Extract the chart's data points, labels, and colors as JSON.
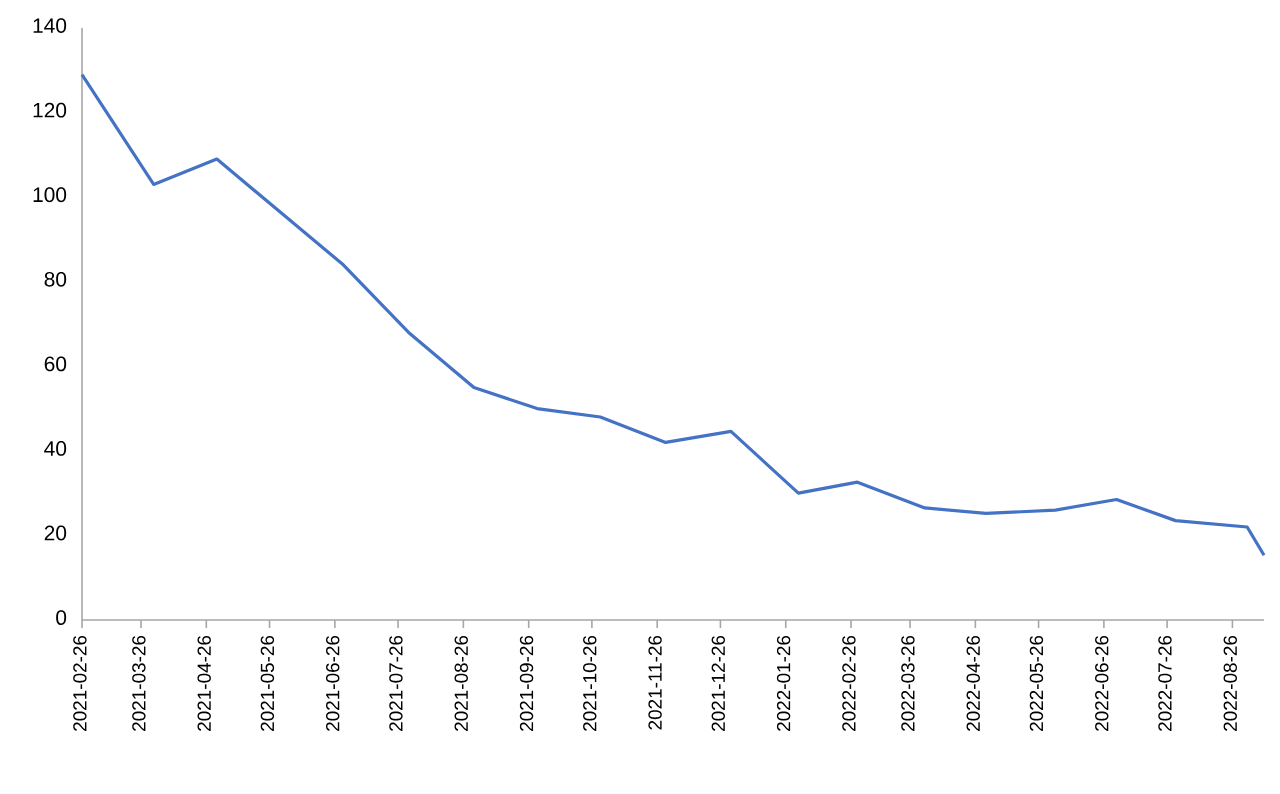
{
  "chart_data": {
    "type": "line",
    "x": [
      "2021-02-26",
      "2021-04-01",
      "2021-05-01",
      "2021-06-30",
      "2021-07-31",
      "2021-08-31",
      "2021-09-30",
      "2021-10-30",
      "2021-11-30",
      "2021-12-31",
      "2022-02-01",
      "2022-03-01",
      "2022-04-02",
      "2022-05-01",
      "2022-06-03",
      "2022-07-02",
      "2022-07-30",
      "2022-09-02",
      "2022-09-10"
    ],
    "series": [
      {
        "color": "#4472c4",
        "values": [
          129,
          103,
          109,
          84,
          68,
          55,
          50,
          48,
          42,
          44.6,
          30,
          32.6,
          26.5,
          25.2,
          26,
          28.5,
          23.5,
          22,
          15.3
        ]
      }
    ],
    "xlim": [
      "2021-02-26",
      "2022-09-10"
    ],
    "xticks": [
      "2021-02-26",
      "2021-03-26",
      "2021-04-26",
      "2021-05-26",
      "2021-06-26",
      "2021-07-26",
      "2021-08-26",
      "2021-09-26",
      "2021-10-26",
      "2021-11-26",
      "2021-12-26",
      "2022-01-26",
      "2022-02-26",
      "2022-03-26",
      "2022-04-26",
      "2022-05-26",
      "2022-06-26",
      "2022-07-26",
      "2022-08-26"
    ],
    "ylim": [
      0,
      140
    ],
    "yticks": [
      0,
      20,
      40,
      60,
      80,
      100,
      120,
      140
    ],
    "grid": false,
    "marker": "none",
    "line_style": "solid"
  }
}
